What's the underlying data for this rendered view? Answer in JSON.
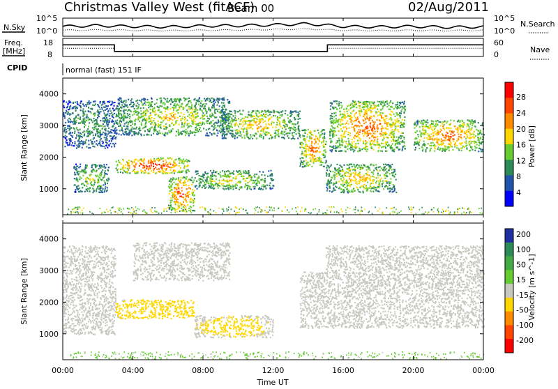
{
  "header": {
    "station_title": "Christmas Valley West (fitACF)",
    "beam": "Beam 00",
    "date": "02/Aug/2011"
  },
  "top_panels": {
    "nsky_label": "N.Sky",
    "nsearch_label": "N.Search",
    "noise_tick_top": "10^5",
    "noise_tick_bottom": "10^0",
    "freq_label_line1": "Freq.",
    "freq_label_line2": "[MHz]",
    "freq_ticks": [
      "18",
      "8"
    ],
    "nave_label": "Nave",
    "nave_ticks": [
      "60",
      "0"
    ],
    "cpid_label": "CPID",
    "cpid_text": "normal (fast) 151 IF"
  },
  "x_axis": {
    "label": "Time UT",
    "ticks": [
      "00:00",
      "04:00",
      "08:00",
      "12:00",
      "16:00",
      "20:00",
      "00:00"
    ]
  },
  "power_panel": {
    "ylabel": "Slant Range [km]",
    "yticks": [
      "1000",
      "2000",
      "3000",
      "4000"
    ],
    "colorbar_label": "Power [dB]",
    "colorbar_ticks": [
      "4",
      "8",
      "12",
      "16",
      "20",
      "24",
      "28"
    ]
  },
  "velocity_panel": {
    "ylabel": "Slant Range [km]",
    "yticks": [
      "1000",
      "2000",
      "3000",
      "4000"
    ],
    "colorbar_label": "Velocity [m s^-1]",
    "colorbar_ticks": [
      "200",
      "100",
      "50",
      "15",
      "-15",
      "-50",
      "-100",
      "-200"
    ]
  },
  "colors": {
    "power_scale": [
      "#0000ff",
      "#2255aa",
      "#2e8b57",
      "#66cc33",
      "#ffd700",
      "#ff8c00",
      "#ff4500",
      "#ff0000"
    ],
    "velocity_scale": [
      "#1f2fa0",
      "#2e8b57",
      "#44aa44",
      "#66cc33",
      "#c8c8c0",
      "#ffd700",
      "#ff8c00",
      "#ff4500",
      "#ff0000"
    ]
  },
  "chart_data": [
    {
      "type": "line",
      "title": "N.Sky / N.Search",
      "x_range_hours": [
        0,
        24
      ],
      "ylim": [
        "10^0",
        "10^5"
      ],
      "series": [
        {
          "name": "N.Sky",
          "x": [
            0,
            2,
            4,
            6,
            8,
            10,
            12,
            14,
            16,
            18,
            20,
            22,
            24
          ],
          "values": [
            0.55,
            0.6,
            0.55,
            0.52,
            0.58,
            0.6,
            0.65,
            0.72,
            0.55,
            0.52,
            0.55,
            0.5,
            0.52
          ]
        },
        {
          "name": "N.Search",
          "x": [
            0,
            2,
            4,
            6,
            8,
            10,
            12,
            14,
            16,
            18,
            20,
            22,
            24
          ],
          "values": [
            0.3,
            0.32,
            0.3,
            0.28,
            0.3,
            0.32,
            0.35,
            0.38,
            0.3,
            0.28,
            0.3,
            0.28,
            0.3
          ]
        }
      ]
    },
    {
      "type": "line",
      "title": "Freq. / Nave",
      "x_range_hours": [
        0,
        24
      ],
      "freq_ylim": [
        8,
        18
      ],
      "nave_ylim": [
        0,
        60
      ],
      "series": [
        {
          "name": "Freq.",
          "x": [
            0,
            2.95,
            2.95,
            15.1,
            15.1,
            24
          ],
          "values": [
            15,
            15,
            10.5,
            10.5,
            15,
            15
          ]
        },
        {
          "name": "Nave",
          "x": [
            0,
            2.95,
            2.95,
            15.1,
            15.1,
            24
          ],
          "values": [
            28,
            28,
            16,
            16,
            28,
            28
          ]
        }
      ]
    },
    {
      "type": "heatmap",
      "title": "Power [dB]",
      "x_range_hours": [
        0,
        24
      ],
      "ylim": [
        180,
        4500
      ],
      "colorbar_range": [
        0,
        30
      ],
      "features": [
        {
          "x_hours": [
            0.0,
            3.0
          ],
          "range_km": [
            2300,
            3800
          ],
          "peak_db": 12
        },
        {
          "x_hours": [
            0.6,
            2.6
          ],
          "range_km": [
            900,
            1800
          ],
          "peak_db": 16
        },
        {
          "x_hours": [
            3.0,
            7.2
          ],
          "range_km": [
            1500,
            2000
          ],
          "peak_db": 28
        },
        {
          "x_hours": [
            3.0,
            9.5
          ],
          "range_km": [
            2700,
            3900
          ],
          "peak_db": 18
        },
        {
          "x_hours": [
            6.0,
            7.5
          ],
          "range_km": [
            300,
            1400
          ],
          "peak_db": 26
        },
        {
          "x_hours": [
            7.5,
            12.0
          ],
          "range_km": [
            1000,
            1600
          ],
          "peak_db": 18
        },
        {
          "x_hours": [
            9.0,
            13.5
          ],
          "range_km": [
            2600,
            3500
          ],
          "peak_db": 20
        },
        {
          "x_hours": [
            13.5,
            15.0
          ],
          "range_km": [
            1700,
            2900
          ],
          "peak_db": 24
        },
        {
          "x_hours": [
            15.0,
            19.0
          ],
          "range_km": [
            900,
            1800
          ],
          "peak_db": 20
        },
        {
          "x_hours": [
            15.2,
            19.5
          ],
          "range_km": [
            2200,
            3800
          ],
          "peak_db": 24
        },
        {
          "x_hours": [
            20.0,
            24.0
          ],
          "range_km": [
            2200,
            3200
          ],
          "peak_db": 24
        }
      ]
    },
    {
      "type": "heatmap",
      "title": "Velocity [m s^-1]",
      "x_range_hours": [
        0,
        24
      ],
      "ylim": [
        180,
        4500
      ],
      "colorbar_range": [
        -200,
        200
      ],
      "features": [
        {
          "x_hours": [
            0.0,
            3.0
          ],
          "range_km": [
            1000,
            3800
          ],
          "velocity": 0
        },
        {
          "x_hours": [
            3.0,
            7.5
          ],
          "range_km": [
            1500,
            2100
          ],
          "velocity": -60
        },
        {
          "x_hours": [
            4.0,
            9.5
          ],
          "range_km": [
            2700,
            3900
          ],
          "velocity": -20
        },
        {
          "x_hours": [
            7.5,
            12.0
          ],
          "range_km": [
            900,
            1600
          ],
          "velocity": -40
        },
        {
          "x_hours": [
            13.5,
            15.0
          ],
          "range_km": [
            1200,
            3000
          ],
          "velocity": 20
        },
        {
          "x_hours": [
            15.0,
            24.0
          ],
          "range_km": [
            1200,
            3800
          ],
          "velocity": 0
        }
      ]
    }
  ]
}
